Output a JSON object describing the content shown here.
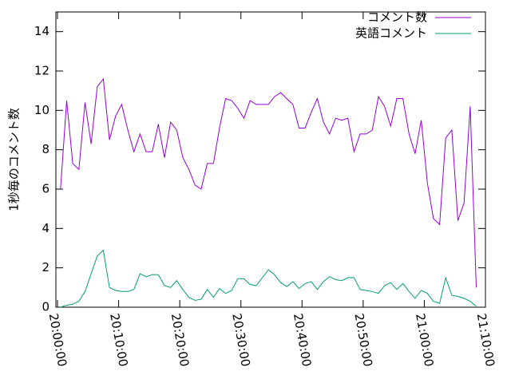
{
  "chart_data": {
    "type": "line",
    "ylabel": "1秒毎のコメント数",
    "x": [
      "20:00:30",
      "20:01:30",
      "20:02:30",
      "20:03:30",
      "20:04:30",
      "20:05:30",
      "20:06:30",
      "20:07:30",
      "20:08:30",
      "20:09:30",
      "20:10:30",
      "20:11:30",
      "20:12:30",
      "20:13:30",
      "20:14:30",
      "20:15:30",
      "20:16:30",
      "20:17:30",
      "20:18:30",
      "20:19:30",
      "20:20:30",
      "20:21:30",
      "20:22:30",
      "20:23:30",
      "20:24:30",
      "20:25:30",
      "20:26:30",
      "20:27:30",
      "20:28:30",
      "20:29:30",
      "20:30:30",
      "20:31:30",
      "20:32:30",
      "20:33:30",
      "20:34:30",
      "20:35:30",
      "20:36:30",
      "20:37:30",
      "20:38:30",
      "20:39:30",
      "20:40:30",
      "20:41:30",
      "20:42:30",
      "20:43:30",
      "20:44:30",
      "20:45:30",
      "20:46:30",
      "20:47:30",
      "20:48:30",
      "20:49:30",
      "20:50:30",
      "20:51:30",
      "20:52:30",
      "20:53:30",
      "20:54:30",
      "20:55:30",
      "20:56:30",
      "20:57:30",
      "20:58:30",
      "20:59:30",
      "21:00:30",
      "21:01:30",
      "21:02:30",
      "21:03:30",
      "21:04:30",
      "21:05:30",
      "21:06:30",
      "21:07:30",
      "21:08:30"
    ],
    "series": [
      {
        "name": "コメント数",
        "color": "#9400d3",
        "values": [
          6.0,
          10.5,
          7.3,
          7.0,
          10.4,
          8.3,
          11.2,
          11.6,
          8.5,
          9.7,
          10.3,
          9.0,
          7.9,
          8.8,
          7.9,
          7.9,
          9.3,
          7.6,
          9.4,
          9.0,
          7.6,
          7.0,
          6.2,
          6.0,
          7.3,
          7.3,
          9.1,
          10.6,
          10.5,
          10.1,
          9.6,
          10.5,
          10.3,
          10.3,
          10.3,
          10.7,
          10.9,
          10.6,
          10.3,
          9.1,
          9.1,
          9.9,
          10.6,
          9.4,
          8.8,
          9.6,
          9.5,
          9.6,
          7.9,
          8.8,
          8.8,
          9.0,
          10.7,
          10.2,
          9.2,
          10.6,
          10.6,
          8.8,
          7.8,
          9.5,
          6.3,
          4.5,
          4.2,
          8.6,
          9.0,
          4.4,
          5.3,
          10.2,
          1.0
        ]
      },
      {
        "name": "英語コメント",
        "color": "#009e73",
        "values": [
          0.0,
          0.1,
          0.15,
          0.3,
          0.8,
          1.7,
          2.6,
          2.9,
          1.0,
          0.85,
          0.8,
          0.8,
          0.9,
          1.7,
          1.55,
          1.65,
          1.65,
          1.1,
          1.0,
          1.35,
          0.9,
          0.5,
          0.35,
          0.4,
          0.9,
          0.5,
          0.95,
          0.7,
          0.85,
          1.45,
          1.45,
          1.15,
          1.1,
          1.5,
          1.9,
          1.65,
          1.25,
          1.05,
          1.3,
          0.95,
          1.2,
          1.3,
          0.9,
          1.3,
          1.55,
          1.4,
          1.35,
          1.5,
          1.5,
          0.9,
          0.85,
          0.8,
          0.7,
          1.1,
          1.25,
          0.9,
          1.2,
          0.8,
          0.45,
          0.85,
          0.7,
          0.3,
          0.2,
          1.5,
          0.6,
          0.55,
          0.45,
          0.3,
          0.05
        ]
      }
    ],
    "xlim": [
      "20:00:00",
      "21:10:00"
    ],
    "xticks": [
      "20:00:00",
      "20:10:00",
      "20:20:00",
      "20:30:00",
      "20:40:00",
      "20:50:00",
      "21:00:00",
      "21:10:00"
    ],
    "ylim": [
      0,
      15
    ],
    "yticks": [
      0,
      2,
      4,
      6,
      8,
      10,
      12,
      14
    ],
    "legend": "top-right"
  }
}
